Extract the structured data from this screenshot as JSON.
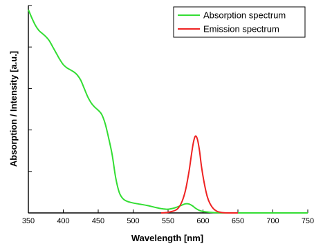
{
  "chart_data": {
    "type": "line",
    "xlabel": "Wavelength [nm]",
    "ylabel": "Absorption / Intensity [a.u.]",
    "xlim": [
      350,
      750
    ],
    "ylim": [
      0,
      1
    ],
    "x_ticks": [
      "350",
      "400",
      "450",
      "500",
      "550",
      "600",
      "650",
      "700",
      "750"
    ],
    "y_tick_values": [
      0.2,
      0.4,
      0.6,
      0.8,
      1.0
    ],
    "y_tick_labels_shown": false,
    "grid": false,
    "legend_position": "top-right",
    "series": [
      {
        "name": "Absorption spectrum",
        "color": "#33dd33",
        "x": [
          350,
          355,
          360,
          365,
          370,
          375,
          380,
          385,
          390,
          395,
          400,
          405,
          410,
          415,
          420,
          425,
          430,
          435,
          440,
          445,
          450,
          455,
          460,
          465,
          470,
          475,
          480,
          485,
          490,
          495,
          500,
          510,
          520,
          530,
          540,
          550,
          560,
          570,
          575,
          580,
          585,
          590,
          595,
          600,
          610,
          620,
          640,
          660,
          700,
          750
        ],
        "y": [
          0.98,
          0.94,
          0.905,
          0.88,
          0.865,
          0.85,
          0.83,
          0.8,
          0.77,
          0.74,
          0.715,
          0.7,
          0.69,
          0.68,
          0.665,
          0.64,
          0.6,
          0.56,
          0.53,
          0.51,
          0.495,
          0.475,
          0.43,
          0.36,
          0.28,
          0.17,
          0.1,
          0.07,
          0.058,
          0.052,
          0.048,
          0.042,
          0.036,
          0.028,
          0.021,
          0.018,
          0.025,
          0.038,
          0.044,
          0.043,
          0.034,
          0.021,
          0.012,
          0.007,
          0.003,
          0.001,
          0,
          0,
          0,
          0
        ]
      },
      {
        "name": "Emission spectrum",
        "color": "#ee2222",
        "x": [
          540,
          550,
          560,
          565,
          570,
          575,
          580,
          583,
          586,
          589,
          592,
          595,
          598,
          602,
          606,
          610,
          615,
          620,
          625,
          630,
          640,
          650
        ],
        "y": [
          0,
          0.003,
          0.012,
          0.025,
          0.055,
          0.11,
          0.2,
          0.27,
          0.335,
          0.37,
          0.355,
          0.3,
          0.22,
          0.14,
          0.08,
          0.045,
          0.02,
          0.008,
          0.003,
          0.001,
          0,
          0
        ]
      }
    ]
  }
}
